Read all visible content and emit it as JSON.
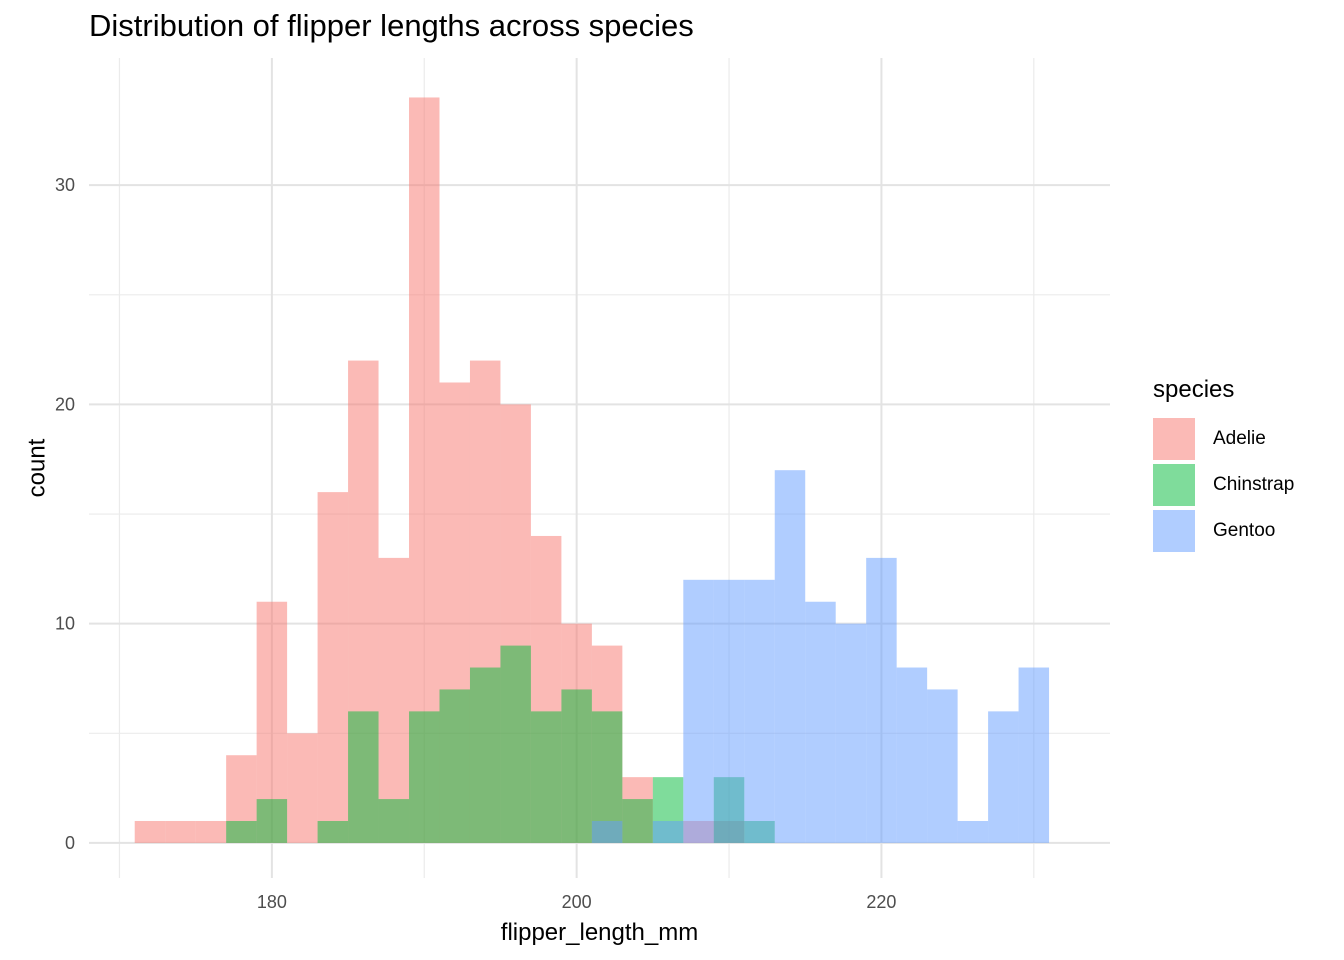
{
  "chart_data": {
    "type": "bar",
    "title": "Distribution of flipper lengths across species",
    "xlabel": "flipper_length_mm",
    "ylabel": "count",
    "xlim": [
      168,
      235
    ],
    "ylim": [
      -1.6,
      35.8
    ],
    "x_ticks": [
      180,
      200,
      220
    ],
    "y_ticks": [
      0,
      10,
      20,
      30
    ],
    "x_minor_ticks": [
      170,
      190,
      210,
      230
    ],
    "y_minor_ticks": [
      5,
      15,
      25
    ],
    "grid": true,
    "legend_title": "species",
    "legend_position": "right",
    "bin_width": 2,
    "stacked": false,
    "opacity": 0.5,
    "series": [
      {
        "name": "Adelie",
        "color": "#F8766D",
        "bins": [
          {
            "x0": 171,
            "x1": 173,
            "count": 1
          },
          {
            "x0": 173,
            "x1": 175,
            "count": 1
          },
          {
            "x0": 175,
            "x1": 177,
            "count": 1
          },
          {
            "x0": 177,
            "x1": 179,
            "count": 4
          },
          {
            "x0": 179,
            "x1": 181,
            "count": 11
          },
          {
            "x0": 181,
            "x1": 183,
            "count": 5
          },
          {
            "x0": 183,
            "x1": 185,
            "count": 16
          },
          {
            "x0": 185,
            "x1": 187,
            "count": 22
          },
          {
            "x0": 187,
            "x1": 189,
            "count": 13
          },
          {
            "x0": 189,
            "x1": 191,
            "count": 34
          },
          {
            "x0": 191,
            "x1": 193,
            "count": 21
          },
          {
            "x0": 193,
            "x1": 195,
            "count": 22
          },
          {
            "x0": 195,
            "x1": 197,
            "count": 20
          },
          {
            "x0": 197,
            "x1": 199,
            "count": 14
          },
          {
            "x0": 199,
            "x1": 201,
            "count": 10
          },
          {
            "x0": 201,
            "x1": 203,
            "count": 9
          },
          {
            "x0": 203,
            "x1": 205,
            "count": 3
          },
          {
            "x0": 207,
            "x1": 209,
            "count": 1
          },
          {
            "x0": 209,
            "x1": 211,
            "count": 1
          }
        ]
      },
      {
        "name": "Chinstrap",
        "color": "#00BA38",
        "bins": [
          {
            "x0": 177,
            "x1": 179,
            "count": 1
          },
          {
            "x0": 179,
            "x1": 181,
            "count": 2
          },
          {
            "x0": 183,
            "x1": 185,
            "count": 1
          },
          {
            "x0": 185,
            "x1": 187,
            "count": 6
          },
          {
            "x0": 187,
            "x1": 189,
            "count": 2
          },
          {
            "x0": 189,
            "x1": 191,
            "count": 6
          },
          {
            "x0": 191,
            "x1": 193,
            "count": 7
          },
          {
            "x0": 193,
            "x1": 195,
            "count": 8
          },
          {
            "x0": 195,
            "x1": 197,
            "count": 9
          },
          {
            "x0": 197,
            "x1": 199,
            "count": 6
          },
          {
            "x0": 199,
            "x1": 201,
            "count": 7
          },
          {
            "x0": 201,
            "x1": 203,
            "count": 6
          },
          {
            "x0": 203,
            "x1": 205,
            "count": 2
          },
          {
            "x0": 205,
            "x1": 207,
            "count": 3
          },
          {
            "x0": 209,
            "x1": 211,
            "count": 3
          },
          {
            "x0": 211,
            "x1": 213,
            "count": 1
          }
        ]
      },
      {
        "name": "Gentoo",
        "color": "#619CFF",
        "bins": [
          {
            "x0": 201,
            "x1": 203,
            "count": 1
          },
          {
            "x0": 205,
            "x1": 207,
            "count": 1
          },
          {
            "x0": 207,
            "x1": 209,
            "count": 12
          },
          {
            "x0": 209,
            "x1": 211,
            "count": 12
          },
          {
            "x0": 211,
            "x1": 213,
            "count": 12
          },
          {
            "x0": 213,
            "x1": 215,
            "count": 17
          },
          {
            "x0": 215,
            "x1": 217,
            "count": 11
          },
          {
            "x0": 217,
            "x1": 219,
            "count": 10
          },
          {
            "x0": 219,
            "x1": 221,
            "count": 13
          },
          {
            "x0": 221,
            "x1": 223,
            "count": 8
          },
          {
            "x0": 223,
            "x1": 225,
            "count": 7
          },
          {
            "x0": 225,
            "x1": 227,
            "count": 1
          },
          {
            "x0": 227,
            "x1": 229,
            "count": 6
          },
          {
            "x0": 229,
            "x1": 231,
            "count": 8
          }
        ]
      }
    ]
  }
}
